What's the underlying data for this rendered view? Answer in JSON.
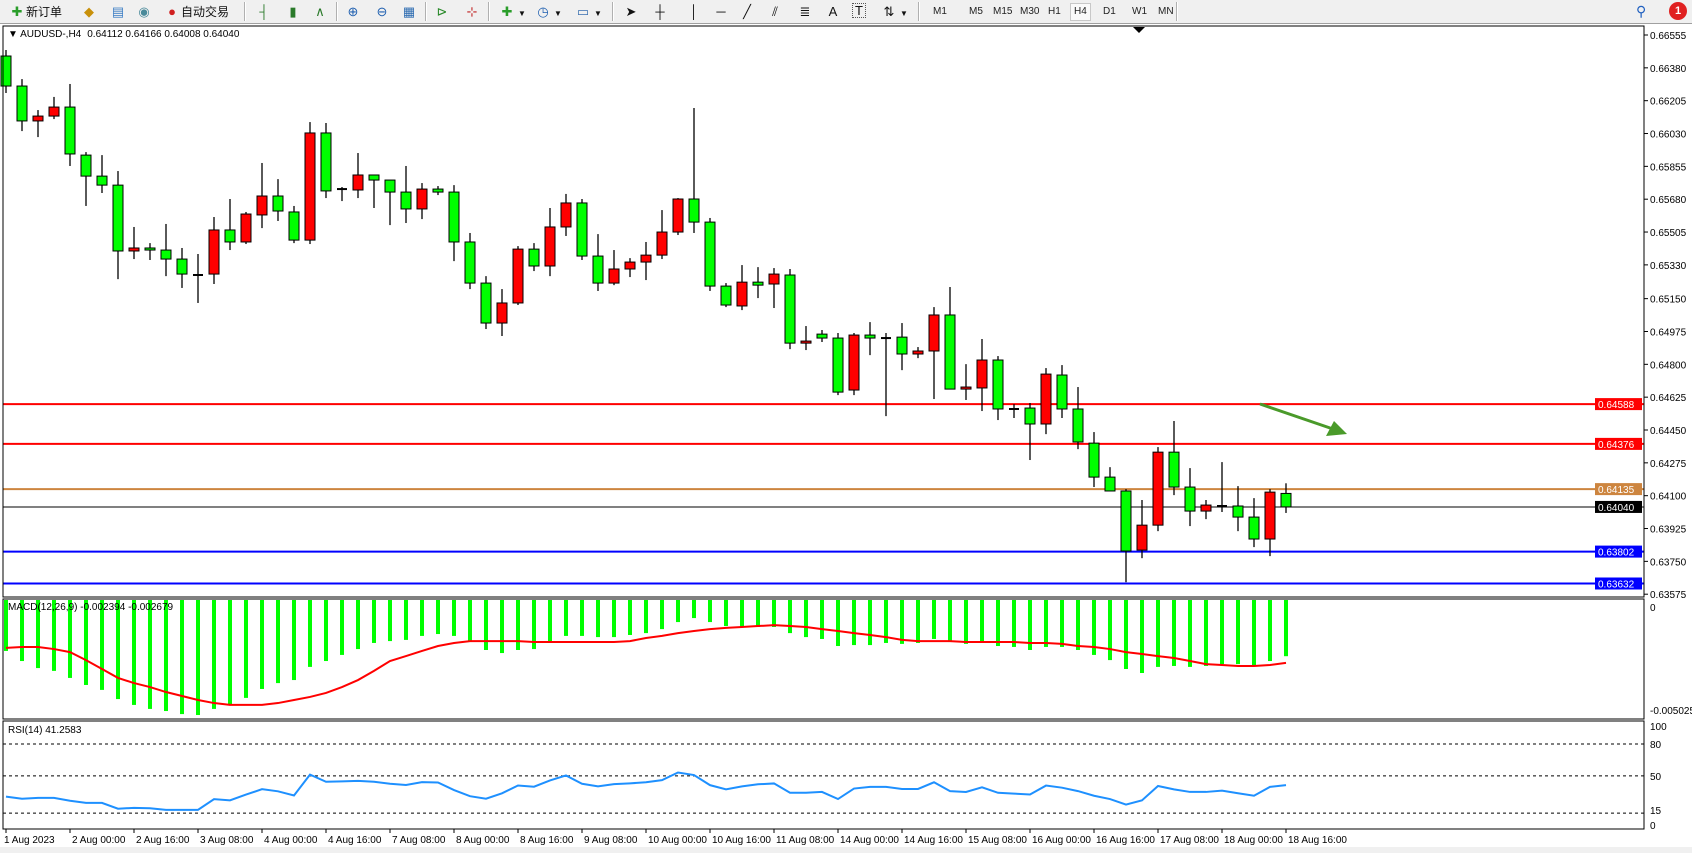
{
  "toolbar": {
    "new_order_label": "新订单",
    "auto_trade_label": "自动交易",
    "timeframes": [
      "M1",
      "M5",
      "M15",
      "M30",
      "H1",
      "H4",
      "D1",
      "W1",
      "MN"
    ],
    "active_timeframe": "H4",
    "text_tool": "A",
    "label_tool": "T",
    "notification_count": "1"
  },
  "chart_header": {
    "symbol": "AUDUSD-,H4",
    "ohlc_text": "0.64112 0.64166 0.64008 0.64040"
  },
  "colors": {
    "bull_candle": "#ff0000",
    "bear_candle": "#00ff00",
    "macd_histogram": "#00ff00",
    "macd_signal": "#ff0000",
    "rsi_line": "#1e90ff",
    "arrow": "#4a9a2a"
  },
  "price_axis": [
    "0.66555",
    "0.66380",
    "0.66205",
    "0.66030",
    "0.65855",
    "0.65680",
    "0.65505",
    "0.65330",
    "0.65150",
    "0.64975",
    "0.64800",
    "0.64625",
    "0.64450",
    "0.64275",
    "0.64100",
    "0.63925",
    "0.63750",
    "0.63575"
  ],
  "price_lines": [
    {
      "price": 0.64588,
      "label": "0.64588",
      "color": "#ff0000"
    },
    {
      "price": 0.64376,
      "label": "0.64376",
      "color": "#ff0000"
    },
    {
      "price": 0.64135,
      "label": "0.64135",
      "color": "#cd853f"
    },
    {
      "price": 0.6404,
      "label": "0.64040",
      "color": "#000000"
    },
    {
      "price": 0.63802,
      "label": "0.63802",
      "color": "#0000ff"
    },
    {
      "price": 0.63632,
      "label": "0.63632",
      "color": "#0000ff"
    }
  ],
  "macd_panel": {
    "label": "MACD(12,26,9) -0.002394 -0.002679",
    "axis": [
      "0",
      "-0.005025"
    ]
  },
  "rsi_panel": {
    "label": "RSI(14) 41.2583",
    "axis": [
      "100",
      "80",
      "50",
      "15",
      "0"
    ],
    "levels": [
      80,
      50,
      15
    ]
  },
  "time_axis": [
    "1 Aug 2023",
    "2 Aug 00:00",
    "2 Aug 16:00",
    "3 Aug 08:00",
    "4 Aug 00:00",
    "4 Aug 16:00",
    "7 Aug 08:00",
    "8 Aug 00:00",
    "8 Aug 16:00",
    "9 Aug 08:00",
    "10 Aug 00:00",
    "10 Aug 16:00",
    "11 Aug 08:00",
    "14 Aug 00:00",
    "14 Aug 16:00",
    "15 Aug 08:00",
    "16 Aug 00:00",
    "16 Aug 16:00",
    "17 Aug 08:00",
    "18 Aug 00:00",
    "18 Aug 16:00"
  ],
  "chart_data": {
    "type": "candlestick",
    "symbol": "AUDUSD-",
    "timeframe": "H4",
    "ylim": [
      0.63575,
      0.66555
    ],
    "ohlc": [
      [
        0.66443,
        0.66475,
        0.66246,
        0.66283
      ],
      [
        0.66283,
        0.6632,
        0.66043,
        0.66097
      ],
      [
        0.66097,
        0.66155,
        0.66011,
        0.66123
      ],
      [
        0.66123,
        0.66225,
        0.66107,
        0.66171
      ],
      [
        0.66171,
        0.66294,
        0.65857,
        0.65921
      ],
      [
        0.65915,
        0.65931,
        0.65644,
        0.65803
      ],
      [
        0.65803,
        0.65915,
        0.65713,
        0.65755
      ],
      [
        0.65755,
        0.6583,
        0.65254,
        0.65404
      ],
      [
        0.65404,
        0.65532,
        0.65361,
        0.6542
      ],
      [
        0.6542,
        0.65446,
        0.65356,
        0.65409
      ],
      [
        0.65409,
        0.65548,
        0.6527,
        0.65361
      ],
      [
        0.65361,
        0.6542,
        0.65207,
        0.65281
      ],
      [
        0.65276,
        0.65388,
        0.65127,
        0.65276
      ],
      [
        0.65281,
        0.65585,
        0.65228,
        0.65516
      ],
      [
        0.65516,
        0.65681,
        0.65409,
        0.65452
      ],
      [
        0.65452,
        0.65612,
        0.65441,
        0.65601
      ],
      [
        0.65596,
        0.65873,
        0.65526,
        0.65697
      ],
      [
        0.65697,
        0.65787,
        0.65564,
        0.65617
      ],
      [
        0.65612,
        0.65644,
        0.65446,
        0.65462
      ],
      [
        0.65462,
        0.66091,
        0.65441,
        0.66033
      ],
      [
        0.66033,
        0.66086,
        0.65686,
        0.65724
      ],
      [
        0.65734,
        0.65745,
        0.6567,
        0.65734
      ],
      [
        0.65729,
        0.65926,
        0.65686,
        0.65809
      ],
      [
        0.65809,
        0.65809,
        0.65633,
        0.65782
      ],
      [
        0.65782,
        0.65782,
        0.65542,
        0.65718
      ],
      [
        0.65718,
        0.65857,
        0.65553,
        0.65628
      ],
      [
        0.65628,
        0.65766,
        0.65574,
        0.65734
      ],
      [
        0.65734,
        0.6575,
        0.65702,
        0.65718
      ],
      [
        0.65718,
        0.65755,
        0.6535,
        0.65452
      ],
      [
        0.65452,
        0.655,
        0.65201,
        0.65233
      ],
      [
        0.65233,
        0.6527,
        0.64988,
        0.6502
      ],
      [
        0.6502,
        0.65201,
        0.64951,
        0.65127
      ],
      [
        0.65127,
        0.6543,
        0.65116,
        0.65414
      ],
      [
        0.65414,
        0.65446,
        0.65297,
        0.65324
      ],
      [
        0.65324,
        0.65633,
        0.6527,
        0.65532
      ],
      [
        0.65532,
        0.65708,
        0.65484,
        0.6566
      ],
      [
        0.6566,
        0.65681,
        0.65356,
        0.65377
      ],
      [
        0.65377,
        0.65494,
        0.65191,
        0.65233
      ],
      [
        0.65233,
        0.65409,
        0.65222,
        0.65308
      ],
      [
        0.65308,
        0.65366,
        0.65265,
        0.65345
      ],
      [
        0.65345,
        0.65452,
        0.65249,
        0.65382
      ],
      [
        0.65382,
        0.65622,
        0.65361,
        0.65505
      ],
      [
        0.65505,
        0.65686,
        0.65489,
        0.65681
      ],
      [
        0.65681,
        0.66166,
        0.655,
        0.65558
      ],
      [
        0.65558,
        0.6558,
        0.65191,
        0.65217
      ],
      [
        0.65217,
        0.65233,
        0.65105,
        0.65116
      ],
      [
        0.65111,
        0.65329,
        0.65089,
        0.65238
      ],
      [
        0.65238,
        0.65318,
        0.65153,
        0.65222
      ],
      [
        0.65228,
        0.65313,
        0.651,
        0.65281
      ],
      [
        0.65276,
        0.65308,
        0.64881,
        0.64913
      ],
      [
        0.64913,
        0.65004,
        0.64876,
        0.64924
      ],
      [
        0.64961,
        0.64983,
        0.64919,
        0.6494
      ],
      [
        0.6494,
        0.64967,
        0.64636,
        0.64652
      ],
      [
        0.64663,
        0.64967,
        0.64636,
        0.64956
      ],
      [
        0.64956,
        0.65025,
        0.64849,
        0.6494
      ],
      [
        0.6494,
        0.64967,
        0.64524,
        0.6494
      ],
      [
        0.64945,
        0.6502,
        0.64769,
        0.64855
      ],
      [
        0.64855,
        0.64892,
        0.64833,
        0.64871
      ],
      [
        0.64871,
        0.65105,
        0.64615,
        0.65063
      ],
      [
        0.65063,
        0.65212,
        0.64668,
        0.64668
      ],
      [
        0.64668,
        0.64801,
        0.6461,
        0.64679
      ],
      [
        0.64674,
        0.64935,
        0.64551,
        0.64823
      ],
      [
        0.64823,
        0.64844,
        0.64503,
        0.64562
      ],
      [
        0.64562,
        0.64588,
        0.64514,
        0.64562
      ],
      [
        0.64567,
        0.64594,
        0.6429,
        0.64482
      ],
      [
        0.64482,
        0.6478,
        0.64428,
        0.64748
      ],
      [
        0.64743,
        0.64796,
        0.64514,
        0.64562
      ],
      [
        0.64562,
        0.64679,
        0.64348,
        0.64386
      ],
      [
        0.6438,
        0.64439,
        0.64146,
        0.64199
      ],
      [
        0.64199,
        0.64252,
        0.64125,
        0.64125
      ],
      [
        0.64125,
        0.64135,
        0.63639,
        0.63805
      ],
      [
        0.6381,
        0.64077,
        0.63767,
        0.63943
      ],
      [
        0.63943,
        0.64359,
        0.63911,
        0.64332
      ],
      [
        0.64332,
        0.64498,
        0.64103,
        0.64146
      ],
      [
        0.64146,
        0.64247,
        0.63938,
        0.64018
      ],
      [
        0.64018,
        0.64077,
        0.63975,
        0.6405
      ],
      [
        0.64045,
        0.64279,
        0.64013,
        0.6404
      ],
      [
        0.64045,
        0.64151,
        0.63911,
        0.63986
      ],
      [
        0.63986,
        0.64087,
        0.63826,
        0.63869
      ],
      [
        0.63869,
        0.64135,
        0.63778,
        0.64119
      ],
      [
        0.64112,
        0.64166,
        0.64008,
        0.6404
      ]
    ],
    "macd": {
      "ylim": [
        -0.005025,
        0
      ],
      "main": [
        -0.00217,
        -0.0026,
        -0.0029,
        -0.00302,
        -0.00332,
        -0.00362,
        -0.00383,
        -0.00422,
        -0.00447,
        -0.00464,
        -0.00473,
        -0.00486,
        -0.0049,
        -0.00464,
        -0.00447,
        -0.00417,
        -0.00379,
        -0.00354,
        -0.00341,
        -0.00285,
        -0.0026,
        -0.00234,
        -0.00209,
        -0.00183,
        -0.00175,
        -0.0017,
        -0.00153,
        -0.00145,
        -0.00153,
        -0.00175,
        -0.00213,
        -0.00226,
        -0.00213,
        -0.00209,
        -0.00179,
        -0.00153,
        -0.00153,
        -0.00158,
        -0.00158,
        -0.00149,
        -0.00141,
        -0.00124,
        -0.00094,
        -0.00077,
        -0.00094,
        -0.00111,
        -0.00115,
        -0.00115,
        -0.00115,
        -0.00141,
        -0.00158,
        -0.00166,
        -0.00196,
        -0.00192,
        -0.00192,
        -0.00183,
        -0.00187,
        -0.00183,
        -0.00166,
        -0.00179,
        -0.00187,
        -0.00179,
        -0.00196,
        -0.002,
        -0.00213,
        -0.002,
        -0.002,
        -0.00213,
        -0.00234,
        -0.00256,
        -0.00294,
        -0.00311,
        -0.00285,
        -0.00281,
        -0.00285,
        -0.00281,
        -0.00273,
        -0.00273,
        -0.00277,
        -0.0026,
        -0.002394
      ],
      "signal": [
        -0.00204,
        -0.002,
        -0.002,
        -0.00209,
        -0.00222,
        -0.00256,
        -0.00294,
        -0.00332,
        -0.00354,
        -0.00371,
        -0.00392,
        -0.00409,
        -0.00426,
        -0.00439,
        -0.00447,
        -0.00447,
        -0.00447,
        -0.00439,
        -0.00426,
        -0.00413,
        -0.00396,
        -0.00371,
        -0.00341,
        -0.00302,
        -0.0026,
        -0.00239,
        -0.00217,
        -0.00196,
        -0.00183,
        -0.00175,
        -0.00175,
        -0.00175,
        -0.00175,
        -0.00179,
        -0.00179,
        -0.00179,
        -0.00179,
        -0.00179,
        -0.00179,
        -0.00175,
        -0.00162,
        -0.00153,
        -0.00141,
        -0.00132,
        -0.00124,
        -0.00119,
        -0.00115,
        -0.00111,
        -0.00107,
        -0.00111,
        -0.00115,
        -0.00124,
        -0.00132,
        -0.00141,
        -0.00149,
        -0.00158,
        -0.0017,
        -0.00175,
        -0.00175,
        -0.00175,
        -0.00179,
        -0.00179,
        -0.00179,
        -0.00179,
        -0.00183,
        -0.00183,
        -0.00187,
        -0.00196,
        -0.002,
        -0.00209,
        -0.00222,
        -0.0023,
        -0.00239,
        -0.00247,
        -0.0026,
        -0.00273,
        -0.00277,
        -0.00281,
        -0.00281,
        -0.00277,
        -0.002679
      ]
    },
    "rsi": {
      "ylim": [
        0,
        100
      ],
      "values": [
        30.5,
        28.5,
        29.3,
        29.3,
        26.6,
        24.6,
        24.6,
        19.1,
        19.9,
        19.5,
        18,
        18,
        18,
        28.1,
        27,
        32.4,
        37.5,
        35.5,
        31.6,
        51.2,
        44.5,
        44.9,
        45.3,
        44.5,
        42.6,
        41.4,
        44.1,
        43.8,
        36.7,
        30.9,
        28.5,
        33.6,
        41,
        39.8,
        45.7,
        50.4,
        42.6,
        40.2,
        42.2,
        43,
        44,
        46,
        53.2,
        50.8,
        41.3,
        37.3,
        40.1,
        42.1,
        42.9,
        34.1,
        34.1,
        34.9,
        28.2,
        38.1,
        39.7,
        39.7,
        37.7,
        37.7,
        44,
        35.7,
        34.9,
        39.3,
        34.1,
        33.3,
        32.5,
        40.9,
        38.9,
        35.7,
        31.3,
        28.2,
        23,
        27,
        40.5,
        37.3,
        34.9,
        34.9,
        36.1,
        33.7,
        31.3,
        39.7,
        41.26
      ]
    }
  }
}
